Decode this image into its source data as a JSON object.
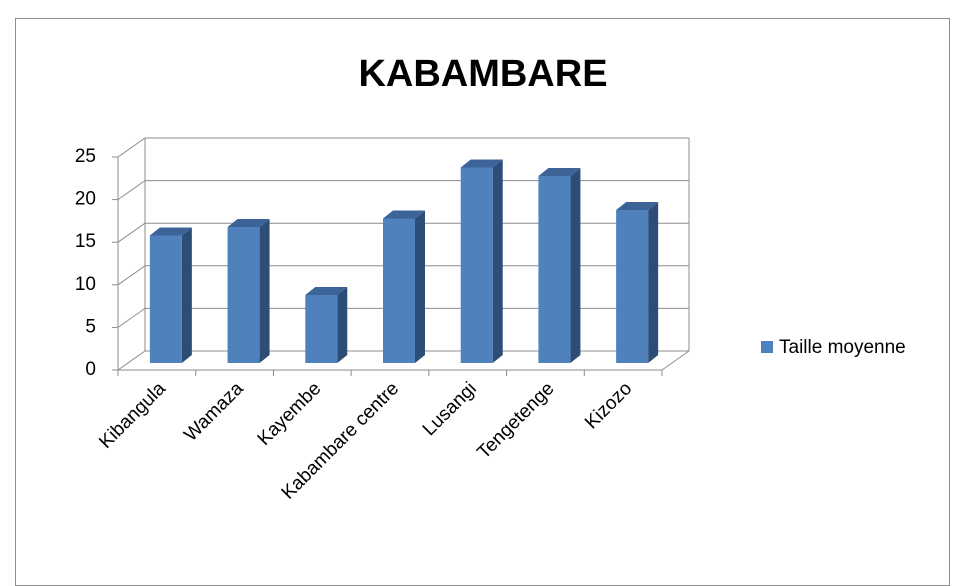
{
  "chart_data": {
    "type": "bar",
    "title": "KABAMBARE",
    "categories": [
      "Kibangula",
      "Wamaza",
      "Kayembe",
      "Kabambare centre",
      "Lusangi",
      "Tengetenge",
      "Kizozo"
    ],
    "series": [
      {
        "name": "Taille moyenne",
        "color": "#4f81bd",
        "values": [
          15,
          16,
          8,
          17,
          23,
          22,
          18
        ]
      }
    ],
    "ylim": [
      0,
      25
    ],
    "yticks": [
      0,
      5,
      10,
      15,
      20,
      25
    ],
    "grid": true,
    "legend": "right"
  }
}
